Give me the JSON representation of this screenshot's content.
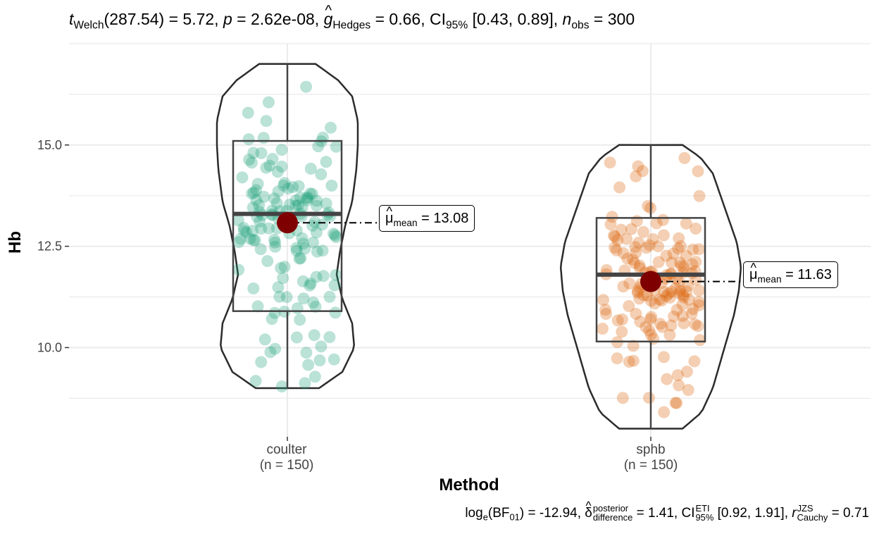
{
  "stats": {
    "subtitle": {
      "t_sym": "t",
      "t_sub": "Welch",
      "t_val": "(287.54) = 5.72, ",
      "p_sym": "p",
      "p_val": " = 2.62e-08, ",
      "g_sym": "g",
      "g_sub": "Hedges",
      "g_val": " = 0.66, CI",
      "ci_sub": "95%",
      "ci_val": " [0.43, 0.89], ",
      "n_sym": "n",
      "n_sub": "obs",
      "n_val": " = 300"
    },
    "caption": {
      "log_text": "log",
      "log_sub": "e",
      "bf_open": "(BF",
      "bf_sub": "01",
      "bf_val": ") = -12.94, ",
      "delta_sym": "δ",
      "delta_sup": "posterior",
      "delta_sub": "difference",
      "delta_val": " = 1.41, CI",
      "ci_sup": "ETI",
      "ci_sub": "95%",
      "ci_val": " [0.92, 1.91], ",
      "r_sym": "r",
      "r_sup": "JZS",
      "r_sub": "Cauchy",
      "r_val": " = 0.71"
    }
  },
  "chart_data": {
    "type": "violin-box-scatter",
    "xlabel": "Method",
    "ylabel": "Hb",
    "ylim": [
      7.8,
      17.5
    ],
    "yticks": [
      10.0,
      12.5,
      15.0
    ],
    "ytick_labels": [
      "10.0",
      "12.5",
      "15.0"
    ],
    "grid": true,
    "groups": [
      {
        "name": "coulter",
        "n_label": "(n = 150)",
        "color": "#1B9E77",
        "box": {
          "q1": 10.9,
          "median": 13.3,
          "q3": 15.1,
          "whisker_low": 9.0,
          "whisker_high": 17.0
        },
        "violin_range": [
          9.0,
          17.0
        ],
        "mean": 13.08,
        "mean_label_sym": "μ",
        "mean_label_sub": "mean",
        "mean_label_val": " = 13.08"
      },
      {
        "name": "sphb",
        "n_label": "(n = 150)",
        "color": "#D95F02",
        "box": {
          "q1": 10.15,
          "median": 11.8,
          "q3": 13.2,
          "whisker_low": 8.0,
          "whisker_high": 15.0
        },
        "violin_range": [
          8.0,
          15.0
        ],
        "mean": 11.63,
        "mean_label_sym": "μ",
        "mean_label_sub": "mean",
        "mean_label_val": " = 11.63"
      }
    ],
    "mean_point_color": "#7F0000"
  }
}
